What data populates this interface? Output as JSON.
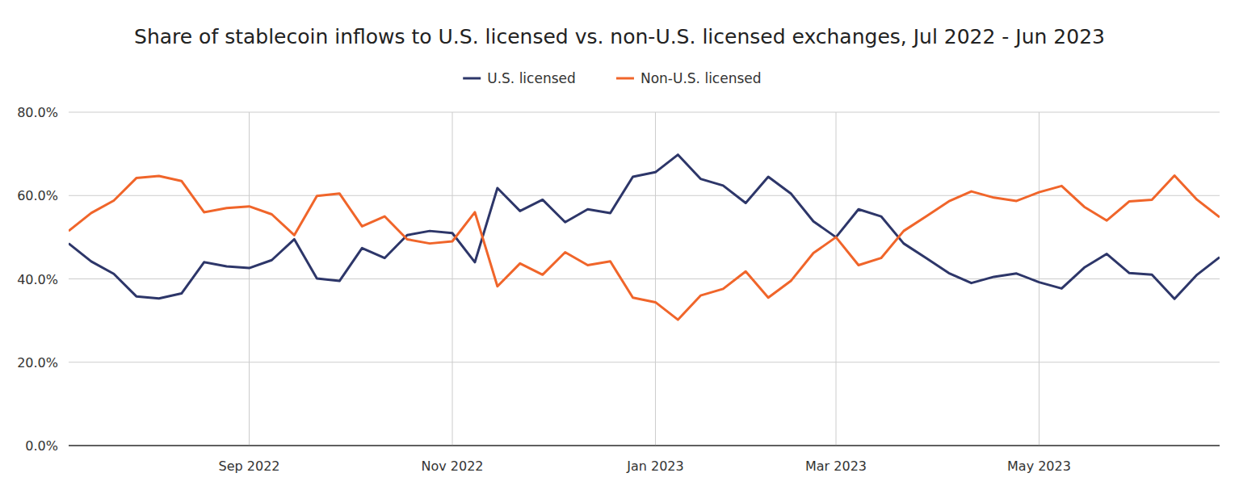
{
  "chart_data": {
    "type": "line",
    "title": "Share of stablecoin inflows to U.S. licensed vs. non-U.S. licensed exchanges, Jul 2022 - Jun 2023",
    "categories": [
      null,
      null,
      null,
      null,
      null,
      null,
      null,
      null,
      "Sep 2022",
      null,
      null,
      null,
      null,
      null,
      null,
      null,
      null,
      "Nov 2022",
      null,
      null,
      null,
      null,
      null,
      null,
      null,
      null,
      "Jan 2023",
      null,
      null,
      null,
      null,
      null,
      null,
      null,
      "Mar 2023",
      null,
      null,
      null,
      null,
      null,
      null,
      null,
      null,
      "May 2023",
      null,
      null,
      null,
      null,
      null,
      null,
      null,
      null
    ],
    "series": [
      {
        "name": "U.S. licensed",
        "color": "#2d3669",
        "values": [
          48.5,
          44.2,
          41.2,
          35.8,
          35.3,
          36.5,
          44,
          43,
          42.6,
          44.5,
          49.5,
          40.1,
          39.5,
          47.4,
          45,
          50.5,
          51.5,
          51,
          44,
          61.8,
          56.3,
          59,
          53.6,
          56.7,
          55.8,
          64.5,
          65.6,
          69.8,
          64,
          62.4,
          58.2,
          64.5,
          60.5,
          53.8,
          50,
          56.7,
          55,
          48.5,
          45,
          41.4,
          39,
          40.5,
          41.3,
          39.2,
          37.7,
          42.7,
          46,
          41.4,
          41,
          35.2,
          41,
          45.2
        ]
      },
      {
        "name": "Non-U.S. licensed",
        "color": "#f0652a",
        "values": [
          51.5,
          55.8,
          58.8,
          64.2,
          64.7,
          63.5,
          56,
          57,
          57.4,
          55.5,
          50.5,
          59.9,
          60.5,
          52.6,
          55,
          49.5,
          48.5,
          49,
          56,
          38.2,
          43.7,
          41,
          46.4,
          43.3,
          44.2,
          35.5,
          34.4,
          30.2,
          36,
          37.6,
          41.8,
          35.5,
          39.5,
          46.2,
          50,
          43.3,
          45,
          51.5,
          55,
          58.6,
          61,
          59.5,
          58.7,
          60.8,
          62.3,
          57.3,
          54,
          58.6,
          59,
          64.8,
          59,
          54.8
        ]
      }
    ],
    "ylim": [
      0,
      80
    ],
    "yticks": [
      {
        "value": 0,
        "label": "0.0%"
      },
      {
        "value": 20,
        "label": "20.0%"
      },
      {
        "value": 40,
        "label": "40.0%"
      },
      {
        "value": 60,
        "label": "60.0%"
      },
      {
        "value": 80,
        "label": "80.0%"
      }
    ],
    "grid": true,
    "legend": "top"
  }
}
